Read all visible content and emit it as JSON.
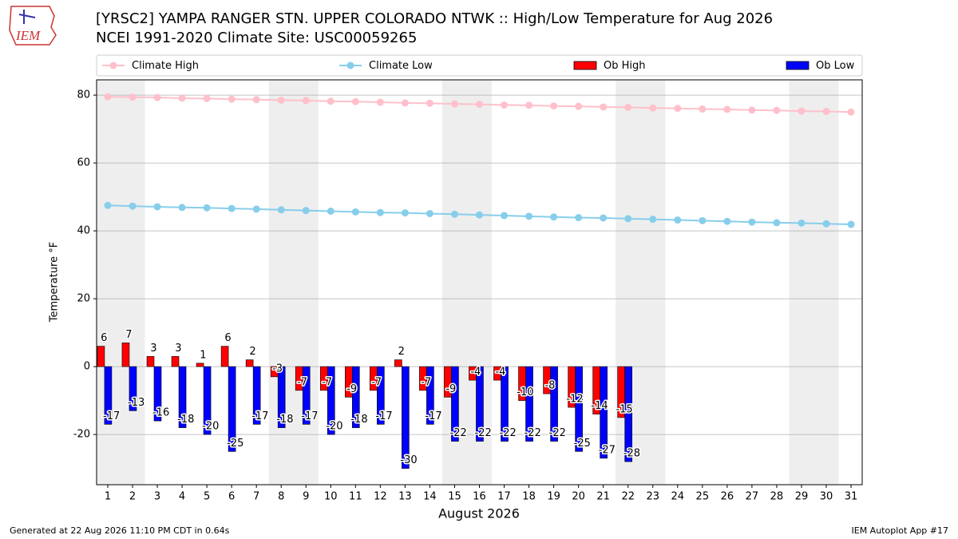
{
  "chart_data": {
    "type": "bar",
    "title": "[YRSC2] YAMPA RANGER STN.  UPPER COLORADO NTWK :: High/Low Temperature for Aug 2026",
    "subtitle": "NCEI 1991-2020 Climate Site: USC00059265",
    "logo_text": "IEM",
    "xlabel": "August 2026",
    "ylabel": "Temperature °F",
    "footer_left": "Generated at 22 Aug 2026 11:10 PM CDT in 0.64s",
    "footer_right": "IEM Autoplot App #17",
    "x": [
      1,
      2,
      3,
      4,
      5,
      6,
      7,
      8,
      9,
      10,
      11,
      12,
      13,
      14,
      15,
      16,
      17,
      18,
      19,
      20,
      21,
      22,
      23,
      24,
      25,
      26,
      27,
      28,
      29,
      30,
      31
    ],
    "xlim": [
      0.55,
      31.45
    ],
    "xticks": [
      1,
      2,
      3,
      4,
      5,
      6,
      7,
      8,
      9,
      10,
      11,
      12,
      13,
      14,
      15,
      16,
      17,
      18,
      19,
      20,
      21,
      22,
      23,
      24,
      25,
      26,
      27,
      28,
      29,
      30,
      31
    ],
    "ylim": [
      -34.8,
      84.5
    ],
    "yticks": [
      -20,
      0,
      20,
      40,
      60,
      80
    ],
    "grid": "y",
    "shaded_ranges": [
      [
        0.5,
        2.5
      ],
      [
        7.5,
        9.5
      ],
      [
        14.5,
        16.5
      ],
      [
        21.5,
        23.5
      ],
      [
        28.5,
        30.5
      ]
    ],
    "series": [
      {
        "name": "Climate High",
        "type": "line",
        "color": "#ffc0cb",
        "values": [
          79.5,
          79.4,
          79.3,
          79.1,
          79.0,
          78.8,
          78.7,
          78.5,
          78.4,
          78.2,
          78.1,
          77.9,
          77.7,
          77.6,
          77.4,
          77.3,
          77.1,
          77.0,
          76.8,
          76.7,
          76.5,
          76.4,
          76.2,
          76.1,
          75.9,
          75.8,
          75.6,
          75.5,
          75.3,
          75.2,
          75.0
        ]
      },
      {
        "name": "Climate Low",
        "type": "line",
        "color": "#87ceeb",
        "values": [
          47.5,
          47.3,
          47.1,
          46.9,
          46.8,
          46.6,
          46.4,
          46.2,
          46.0,
          45.8,
          45.6,
          45.4,
          45.3,
          45.1,
          44.9,
          44.7,
          44.5,
          44.3,
          44.1,
          43.9,
          43.8,
          43.6,
          43.4,
          43.2,
          43.0,
          42.8,
          42.6,
          42.4,
          42.3,
          42.1,
          41.9
        ]
      },
      {
        "name": "Ob High",
        "type": "bar",
        "color": "#ff0000",
        "values": [
          6,
          7,
          3,
          3,
          1,
          6,
          2,
          -3,
          -7,
          -7,
          -9,
          -7,
          2,
          -7,
          -9,
          -4,
          -4,
          -10,
          -8,
          -12,
          -14,
          -15,
          null,
          null,
          null,
          null,
          null,
          null,
          null,
          null,
          null
        ]
      },
      {
        "name": "Ob Low",
        "type": "bar",
        "color": "#0000ff",
        "values": [
          -17,
          -13,
          -16,
          -18,
          -20,
          -25,
          -17,
          -18,
          -17,
          -20,
          -18,
          -17,
          -30,
          -17,
          -22,
          -22,
          -22,
          -22,
          -22,
          -25,
          -27,
          -28,
          null,
          null,
          null,
          null,
          null,
          null,
          null,
          null,
          null
        ]
      }
    ]
  }
}
